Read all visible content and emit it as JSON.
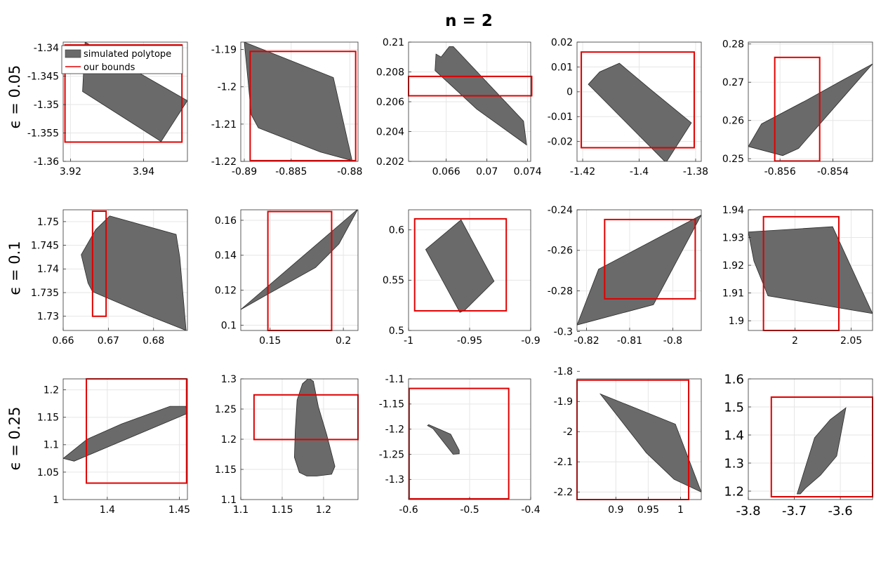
{
  "figure": {
    "title": "n = 2",
    "row_labels": [
      "ϵ = 0.05",
      "ϵ = 0.1",
      "ϵ = 0.25"
    ],
    "legend": {
      "polytope": "simulated polytope",
      "bounds": "our bounds"
    }
  },
  "colors": {
    "polytope_fill": "#6a6a6a",
    "polytope_edge": "#2a2a2a",
    "bounds": "#e00000",
    "grid": "#e6e6e6"
  },
  "chart_data": [
    {
      "type": "polytope-bounds",
      "row": 0,
      "col": 0,
      "grid": true,
      "xlim": [
        3.918,
        3.952
      ],
      "ylim": [
        -1.36,
        -1.339
      ],
      "xticks": [
        3.92,
        3.94
      ],
      "xtick_labels": [
        "3.92",
        "3.94"
      ],
      "yticks": [
        -1.36,
        -1.355,
        -1.35,
        -1.345,
        -1.34
      ],
      "ytick_labels": [
        "-1.36",
        "-1.355",
        "-1.35",
        "-1.345",
        "-1.34"
      ],
      "polytope": [
        [
          3.924,
          -1.339
        ],
        [
          3.952,
          -1.3493
        ],
        [
          3.9448,
          -1.3565
        ],
        [
          3.9233,
          -1.3477
        ]
      ],
      "bounds": {
        "x": [
          3.9185,
          3.9505
        ],
        "y": [
          -1.3566,
          -1.3395
        ]
      },
      "legend": "top-left"
    },
    {
      "type": "polytope-bounds",
      "row": 0,
      "col": 1,
      "grid": true,
      "xlim": [
        -0.8893,
        -0.8793
      ],
      "ylim": [
        -1.22,
        -1.188
      ],
      "xticks": [
        -0.889,
        -0.885,
        -0.88
      ],
      "xtick_labels": [
        "-0.89",
        "-0.885",
        "-0.88"
      ],
      "yticks": [
        -1.22,
        -1.21,
        -1.2,
        -1.19
      ],
      "ytick_labels": [
        "-1.22",
        "-1.21",
        "-1.2",
        "-1.19"
      ],
      "polytope": [
        [
          -0.889,
          -1.188
        ],
        [
          -0.8814,
          -1.1975
        ],
        [
          -0.8798,
          -1.2198
        ],
        [
          -0.8825,
          -1.2175
        ],
        [
          -0.8878,
          -1.211
        ],
        [
          -0.8884,
          -1.2075
        ]
      ],
      "bounds": {
        "x": [
          -0.8885,
          -0.8795
        ],
        "y": [
          -1.2198,
          -1.1905
        ]
      }
    },
    {
      "type": "polytope-bounds",
      "row": 0,
      "col": 2,
      "grid": true,
      "xlim": [
        0.0623,
        0.0743
      ],
      "ylim": [
        0.202,
        0.21
      ],
      "xticks": [
        0.066,
        0.07,
        0.074
      ],
      "xtick_labels": [
        "0.066",
        "0.07",
        "0.074"
      ],
      "yticks": [
        0.202,
        0.204,
        0.206,
        0.208,
        0.21
      ],
      "ytick_labels": [
        "0.202",
        "0.204",
        "0.206",
        "0.208",
        "0.21"
      ],
      "polytope": [
        [
          0.0655,
          0.209
        ],
        [
          0.0663,
          0.2097
        ],
        [
          0.0667,
          0.2097
        ],
        [
          0.0736,
          0.2047
        ],
        [
          0.0739,
          0.2031
        ],
        [
          0.069,
          0.2055
        ],
        [
          0.0649,
          0.2081
        ],
        [
          0.065,
          0.2092
        ]
      ],
      "bounds": {
        "x": [
          0.0623,
          0.0744
        ],
        "y": [
          0.2064,
          0.2077
        ]
      }
    },
    {
      "type": "polytope-bounds",
      "row": 0,
      "col": 3,
      "grid": true,
      "xlim": [
        -1.422,
        -1.378
      ],
      "ylim": [
        -0.028,
        0.02
      ],
      "xticks": [
        -1.42,
        -1.4,
        -1.38
      ],
      "xtick_labels": [
        "-1.42",
        "-1.4",
        "-1.38"
      ],
      "yticks": [
        -0.02,
        -0.01,
        0,
        0.01,
        0.02
      ],
      "ytick_labels": [
        "-0.02",
        "-0.01",
        "0",
        "0.01",
        "0.02"
      ],
      "polytope": [
        [
          -1.418,
          0.003
        ],
        [
          -1.414,
          0.008
        ],
        [
          -1.407,
          0.0115
        ],
        [
          -1.396,
          0.001
        ],
        [
          -1.3815,
          -0.0125
        ],
        [
          -1.3905,
          -0.0285
        ]
      ],
      "bounds": {
        "x": [
          -1.4205,
          -1.3805
        ],
        "y": [
          -0.0225,
          0.016
        ]
      }
    },
    {
      "type": "polytope-bounds",
      "row": 0,
      "col": 4,
      "grid": true,
      "xlim": [
        -0.8572,
        -0.8525
      ],
      "ylim": [
        0.2493,
        0.2805
      ],
      "xticks": [
        -0.856,
        -0.854
      ],
      "xtick_labels": [
        "-0.856",
        "-0.854"
      ],
      "yticks": [
        0.25,
        0.26,
        0.27,
        0.28
      ],
      "ytick_labels": [
        "0.25",
        "0.26",
        "0.27",
        "0.28"
      ],
      "polytope": [
        [
          -0.8572,
          0.2532
        ],
        [
          -0.8567,
          0.2591
        ],
        [
          -0.855,
          0.2653
        ],
        [
          -0.8537,
          0.2703
        ],
        [
          -0.8525,
          0.2748
        ],
        [
          -0.8534,
          0.2677
        ],
        [
          -0.8553,
          0.2527
        ],
        [
          -0.8559,
          0.2508
        ]
      ],
      "bounds": {
        "x": [
          -0.8562,
          -0.8545
        ],
        "y": [
          0.2494,
          0.2765
        ]
      }
    },
    {
      "type": "polytope-bounds",
      "row": 1,
      "col": 0,
      "grid": true,
      "xlim": [
        0.66,
        0.6875
      ],
      "ylim": [
        1.727,
        1.7525
      ],
      "xticks": [
        0.66,
        0.67,
        0.68
      ],
      "xtick_labels": [
        "0.66",
        "0.67",
        "0.68"
      ],
      "yticks": [
        1.73,
        1.735,
        1.74,
        1.745,
        1.75
      ],
      "ytick_labels": [
        "1.73",
        "1.735",
        "1.74",
        "1.745",
        "1.75"
      ],
      "polytope": [
        [
          0.6703,
          1.7512
        ],
        [
          0.685,
          1.7473
        ],
        [
          0.6858,
          1.7425
        ],
        [
          0.6872,
          1.727
        ],
        [
          0.6785,
          1.7303
        ],
        [
          0.6665,
          1.7352
        ],
        [
          0.6655,
          1.737
        ],
        [
          0.664,
          1.743
        ],
        [
          0.6672,
          1.7483
        ]
      ],
      "bounds": {
        "x": [
          0.6665,
          0.6695
        ],
        "y": [
          1.73,
          1.7522
        ]
      }
    },
    {
      "type": "polytope-bounds",
      "row": 1,
      "col": 1,
      "grid": true,
      "xlim": [
        0.13,
        0.21
      ],
      "ylim": [
        0.097,
        0.166
      ],
      "xticks": [
        0.15,
        0.2
      ],
      "xtick_labels": [
        "0.15",
        "0.2"
      ],
      "yticks": [
        0.1,
        0.12,
        0.14,
        0.16
      ],
      "ytick_labels": [
        "0.1",
        "0.12",
        "0.14",
        "0.16"
      ],
      "polytope": [
        [
          0.13,
          0.109
        ],
        [
          0.21,
          0.1665
        ],
        [
          0.197,
          0.1465
        ],
        [
          0.181,
          0.133
        ],
        [
          0.149,
          0.118
        ]
      ],
      "bounds": {
        "x": [
          0.1485,
          0.192
        ],
        "y": [
          0.097,
          0.165
        ]
      }
    },
    {
      "type": "polytope-bounds",
      "row": 1,
      "col": 2,
      "grid": true,
      "xlim": [
        -1,
        -0.9
      ],
      "ylim": [
        0.5,
        0.62
      ],
      "xticks": [
        -1,
        -0.95,
        -0.9
      ],
      "xtick_labels": [
        "-1",
        "-0.95",
        "-0.9"
      ],
      "yticks": [
        0.5,
        0.55,
        0.6
      ],
      "ytick_labels": [
        "0.5",
        "0.55",
        "0.6"
      ],
      "polytope": [
        [
          -0.986,
          0.5805
        ],
        [
          -0.957,
          0.61
        ],
        [
          -0.93,
          0.549
        ],
        [
          -0.954,
          0.52
        ],
        [
          -0.958,
          0.518
        ]
      ],
      "bounds": {
        "x": [
          -0.995,
          -0.92
        ],
        "y": [
          0.5195,
          0.611
        ]
      }
    },
    {
      "type": "polytope-bounds",
      "row": 1,
      "col": 3,
      "grid": true,
      "xlim": [
        -0.8222,
        -0.7934
      ],
      "ylim": [
        -0.2995,
        -0.24
      ],
      "xticks": [
        -0.82,
        -0.81,
        -0.8
      ],
      "xtick_labels": [
        "-0.82",
        "-0.81",
        "-0.8"
      ],
      "yticks": [
        -0.3,
        -0.28,
        -0.26,
        -0.24
      ],
      "ytick_labels": [
        "-0.3",
        "-0.28",
        "-0.26",
        "-0.24"
      ],
      "polytope": [
        [
          -0.8222,
          -0.2968
        ],
        [
          -0.8045,
          -0.2868
        ],
        [
          -0.7934,
          -0.2426
        ],
        [
          -0.8172,
          -0.2693
        ]
      ],
      "bounds": {
        "x": [
          -0.8158,
          -0.7948
        ],
        "y": [
          -0.2839,
          -0.2448
        ]
      }
    },
    {
      "type": "polytope-bounds",
      "row": 1,
      "col": 4,
      "grid": true,
      "xlim": [
        1.9585,
        2.069
      ],
      "ylim": [
        1.8965,
        1.94
      ],
      "xticks": [
        2,
        2.05
      ],
      "xtick_labels": [
        "2",
        "2.05"
      ],
      "yticks": [
        1.9,
        1.91,
        1.92,
        1.93,
        1.94
      ],
      "ytick_labels": [
        "1.9",
        "1.91",
        "1.92",
        "1.93",
        "1.94"
      ],
      "polytope": [
        [
          1.9585,
          1.932
        ],
        [
          2.0335,
          1.9339
        ],
        [
          2.069,
          1.9026
        ],
        [
          1.976,
          1.909
        ],
        [
          1.97,
          1.915
        ],
        [
          1.9635,
          1.9215
        ]
      ],
      "bounds": {
        "x": [
          1.972,
          2.039
        ],
        "y": [
          1.8965,
          1.9375
        ]
      }
    },
    {
      "type": "polytope-bounds",
      "row": 2,
      "col": 0,
      "grid": true,
      "xlim": [
        1.3694,
        1.4556
      ],
      "ylim": [
        1,
        1.22
      ],
      "xticks": [
        1.4,
        1.45
      ],
      "xtick_labels": [
        "1.4",
        "1.45"
      ],
      "yticks": [
        1,
        1.05,
        1.1,
        1.15,
        1.2
      ],
      "ytick_labels": [
        "1",
        "1.05",
        "1.1",
        "1.15",
        "1.2"
      ],
      "polytope": [
        [
          1.3694,
          1.075
        ],
        [
          1.386,
          1.11
        ],
        [
          1.41,
          1.138
        ],
        [
          1.4435,
          1.17
        ],
        [
          1.4545,
          1.17
        ],
        [
          1.4555,
          1.157
        ],
        [
          1.377,
          1.07
        ]
      ],
      "bounds": {
        "x": [
          1.3855,
          1.455
        ],
        "y": [
          1.03,
          1.22
        ]
      }
    },
    {
      "type": "polytope-bounds",
      "row": 2,
      "col": 1,
      "grid": true,
      "xlim": [
        1.1,
        1.2416
      ],
      "ylim": [
        1.1,
        1.3
      ],
      "xticks": [
        1.1,
        1.15,
        1.2
      ],
      "xtick_labels": [
        "1.1",
        "1.15",
        "1.2"
      ],
      "yticks": [
        1.1,
        1.15,
        1.2,
        1.25,
        1.3
      ],
      "ytick_labels": [
        "1.1",
        "1.15",
        "1.2",
        "1.25",
        "1.3"
      ],
      "polytope": [
        [
          1.168,
          1.265
        ],
        [
          1.1745,
          1.292
        ],
        [
          1.182,
          1.301
        ],
        [
          1.1877,
          1.296
        ],
        [
          1.1937,
          1.254
        ],
        [
          1.2037,
          1.208
        ],
        [
          1.2137,
          1.155
        ],
        [
          1.2097,
          1.142
        ],
        [
          1.1917,
          1.139
        ],
        [
          1.1797,
          1.139
        ],
        [
          1.1707,
          1.145
        ],
        [
          1.1648,
          1.17
        ],
        [
          1.1658,
          1.215
        ]
      ],
      "bounds": {
        "x": [
          1.116,
          1.2416
        ],
        "y": [
          1.1995,
          1.2735
        ]
      }
    },
    {
      "type": "polytope-bounds",
      "row": 2,
      "col": 2,
      "grid": true,
      "xlim": [
        -0.6,
        -0.4
      ],
      "ylim": [
        -1.34,
        -1.1
      ],
      "xticks": [
        -0.6,
        -0.5,
        -0.4
      ],
      "xtick_labels": [
        "-0.6",
        "-0.5",
        "-0.4"
      ],
      "yticks": [
        -1.3,
        -1.25,
        -1.2,
        -1.15,
        -1.1
      ],
      "ytick_labels": [
        "-1.3",
        "-1.25",
        "-1.2",
        "-1.15",
        "-1.1"
      ],
      "polytope": [
        [
          -0.567,
          -1.191
        ],
        [
          -0.531,
          -1.21
        ],
        [
          -0.517,
          -1.242
        ],
        [
          -0.517,
          -1.249
        ],
        [
          -0.527,
          -1.25
        ],
        [
          -0.56,
          -1.199
        ],
        [
          -0.569,
          -1.193
        ]
      ],
      "bounds": {
        "x": [
          -0.599,
          -0.436
        ],
        "y": [
          -1.3385,
          -1.119
        ]
      }
    },
    {
      "type": "polytope-bounds",
      "row": 2,
      "col": 3,
      "grid": true,
      "xlim": [
        0.84,
        1.032
      ],
      "ylim": [
        -2.225,
        -1.825
      ],
      "xticks": [
        0.9,
        0.95,
        1
      ],
      "xtick_labels": [
        "0.9",
        "0.95",
        "1"
      ],
      "yticks": [
        -2.2,
        -2.1,
        -2,
        -1.9,
        -1.8
      ],
      "ytick_labels": [
        "-2.2",
        "-2.1",
        "-2",
        "-1.9",
        "-1.8"
      ],
      "polytope": [
        [
          0.876,
          -1.875
        ],
        [
          0.992,
          -1.975
        ],
        [
          1.032,
          -2.2
        ],
        [
          0.99,
          -2.158
        ],
        [
          0.947,
          -2.07
        ]
      ],
      "bounds": {
        "x": [
          0.84,
          1.0125
        ],
        "y": [
          -2.225,
          -1.829
        ]
      }
    },
    {
      "type": "polytope-bounds",
      "row": 2,
      "col": 4,
      "grid": true,
      "xlim": [
        -3.8,
        -3.53
      ],
      "ylim": [
        1.17,
        1.6
      ],
      "xticks": [
        -3.8,
        -3.7,
        -3.6
      ],
      "xtick_labels": [
        "-3.8",
        "-3.7",
        "-3.6"
      ],
      "yticks": [
        1.2,
        1.3,
        1.4,
        1.5,
        1.6
      ],
      "ytick_labels": [
        "1.2",
        "1.3",
        "1.4",
        "1.5",
        "1.6"
      ],
      "polytope": [
        [
          -3.694,
          1.19
        ],
        [
          -3.656,
          1.39
        ],
        [
          -3.622,
          1.455
        ],
        [
          -3.588,
          1.497
        ],
        [
          -3.608,
          1.325
        ],
        [
          -3.643,
          1.257
        ],
        [
          -3.676,
          1.21
        ],
        [
          -3.687,
          1.19
        ]
      ],
      "bounds": {
        "x": [
          -3.75,
          -3.53
        ],
        "y": [
          1.18,
          1.535
        ]
      }
    }
  ]
}
